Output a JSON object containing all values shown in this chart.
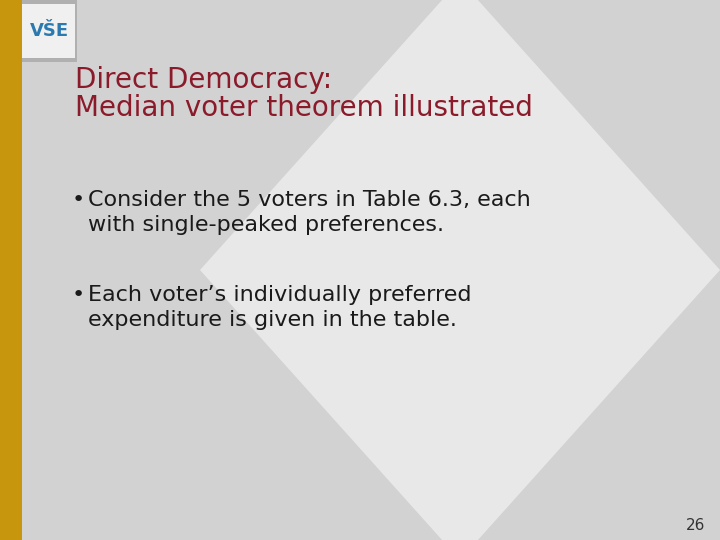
{
  "title_line1": "Direct Democracy:",
  "title_line2": "Median voter theorem illustrated",
  "title_color": "#8B1A2A",
  "bullet1_line1": "Consider the 5 voters in Table 6.3, each",
  "bullet1_line2": "with single-peaked preferences.",
  "bullet2_line1": "Each voter’s individually preferred",
  "bullet2_line2": "expenditure is given in the table.",
  "bullet_color": "#1a1a1a",
  "bg_color": "#c9c9c9",
  "content_bg_color": "#d2d2d2",
  "left_bar_color": "#C8960C",
  "logo_yellow_color": "#C8960C",
  "logo_grey_color": "#b0b0b0",
  "logo_text_color": "#2a7ab0",
  "slide_number": "26",
  "diamond_color": "#e8e8e8",
  "title_fontsize": 20,
  "bullet_fontsize": 16,
  "slide_num_fontsize": 11
}
